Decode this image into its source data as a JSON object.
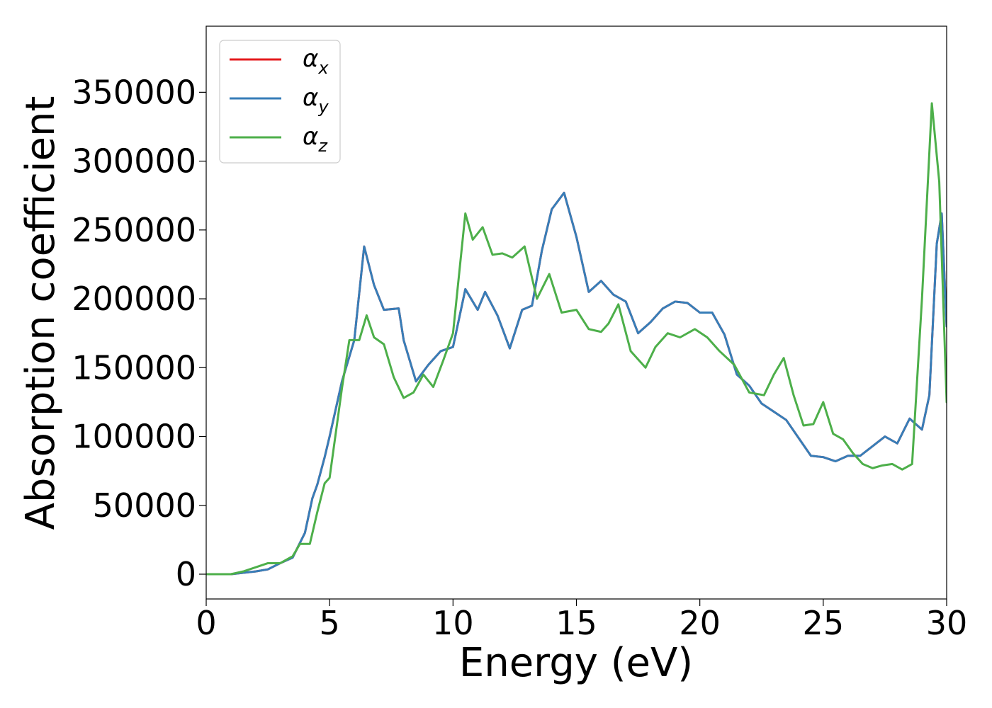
{
  "chart_data": {
    "type": "line",
    "title": "",
    "xlabel": "Energy (eV)",
    "ylabel": "Absorption coefficient",
    "xlim": [
      0,
      30
    ],
    "ylim": [
      -18000,
      398000
    ],
    "grid": false,
    "legend_position": "top-left",
    "x_ticks": [
      0,
      5,
      10,
      15,
      20,
      25,
      30
    ],
    "x_tick_labels": [
      "0",
      "5",
      "10",
      "15",
      "20",
      "25",
      "30"
    ],
    "y_ticks": [
      0,
      50000,
      100000,
      150000,
      200000,
      250000,
      300000,
      350000
    ],
    "y_tick_labels": [
      "0",
      "50000",
      "100000",
      "150000",
      "200000",
      "250000",
      "300000",
      "350000"
    ],
    "series": [
      {
        "name": "α_x",
        "legend_main": "α",
        "legend_sub": "x",
        "color": "#e41a1c",
        "x": [
          0,
          1,
          1.5,
          2.0,
          2.5,
          3.0,
          3.5,
          4.0,
          4.3,
          4.5,
          4.8,
          5.0,
          5.5,
          6.0,
          6.4,
          6.8,
          7.2,
          7.8,
          8.0,
          8.5,
          9.0,
          9.5,
          10.0,
          10.5,
          11.0,
          11.3,
          11.8,
          12.3,
          12.8,
          13.2,
          13.6,
          14.0,
          14.5,
          15.0,
          15.5,
          16.0,
          16.5,
          17.0,
          17.5,
          18.0,
          18.5,
          19.0,
          19.5,
          20.0,
          20.5,
          21.0,
          21.5,
          22.0,
          22.5,
          23.0,
          23.5,
          24.0,
          24.5,
          25.0,
          25.5,
          26.0,
          26.5,
          27.0,
          27.5,
          28.0,
          28.5,
          29.0,
          29.3,
          29.6,
          29.8,
          30.0
        ],
        "values": [
          0,
          0,
          1000,
          2000,
          3500,
          8000,
          12000,
          30000,
          55000,
          65000,
          85000,
          100000,
          140000,
          170000,
          238000,
          210000,
          192000,
          193000,
          170000,
          140000,
          152000,
          162000,
          165000,
          207000,
          192000,
          205000,
          188000,
          164000,
          192000,
          195000,
          235000,
          265000,
          277000,
          245000,
          205000,
          213000,
          203000,
          198000,
          175000,
          183000,
          193000,
          198000,
          197000,
          190000,
          190000,
          174000,
          145000,
          137000,
          124000,
          118000,
          112000,
          99000,
          86000,
          85000,
          82000,
          86000,
          86000,
          93000,
          100000,
          95000,
          113000,
          105000,
          130000,
          240000,
          262000,
          180000
        ]
      },
      {
        "name": "α_y",
        "legend_main": "α",
        "legend_sub": "y",
        "color": "#377eb8",
        "x": [
          0,
          1,
          1.5,
          2.0,
          2.5,
          3.0,
          3.5,
          4.0,
          4.3,
          4.5,
          4.8,
          5.0,
          5.5,
          6.0,
          6.4,
          6.8,
          7.2,
          7.8,
          8.0,
          8.5,
          9.0,
          9.5,
          10.0,
          10.5,
          11.0,
          11.3,
          11.8,
          12.3,
          12.8,
          13.2,
          13.6,
          14.0,
          14.5,
          15.0,
          15.5,
          16.0,
          16.5,
          17.0,
          17.5,
          18.0,
          18.5,
          19.0,
          19.5,
          20.0,
          20.5,
          21.0,
          21.5,
          22.0,
          22.5,
          23.0,
          23.5,
          24.0,
          24.5,
          25.0,
          25.5,
          26.0,
          26.5,
          27.0,
          27.5,
          28.0,
          28.5,
          29.0,
          29.3,
          29.6,
          29.8,
          30.0
        ],
        "values": [
          0,
          0,
          1000,
          2000,
          3500,
          8000,
          12000,
          30000,
          55000,
          65000,
          85000,
          100000,
          140000,
          170000,
          238000,
          210000,
          192000,
          193000,
          170000,
          140000,
          152000,
          162000,
          165000,
          207000,
          192000,
          205000,
          188000,
          164000,
          192000,
          195000,
          235000,
          265000,
          277000,
          245000,
          205000,
          213000,
          203000,
          198000,
          175000,
          183000,
          193000,
          198000,
          197000,
          190000,
          190000,
          174000,
          145000,
          137000,
          124000,
          118000,
          112000,
          99000,
          86000,
          85000,
          82000,
          86000,
          86000,
          93000,
          100000,
          95000,
          113000,
          105000,
          130000,
          240000,
          262000,
          180000
        ]
      },
      {
        "name": "α_z",
        "legend_main": "α",
        "legend_sub": "z",
        "color": "#4daf4a",
        "x": [
          0,
          1,
          1.5,
          2.0,
          2.5,
          3.0,
          3.5,
          3.8,
          4.2,
          4.5,
          4.8,
          5.0,
          5.5,
          5.8,
          6.2,
          6.5,
          6.8,
          7.2,
          7.6,
          8.0,
          8.4,
          8.8,
          9.2,
          9.6,
          10.0,
          10.5,
          10.8,
          11.2,
          11.6,
          12.0,
          12.4,
          12.9,
          13.4,
          13.9,
          14.4,
          15.0,
          15.5,
          16.0,
          16.3,
          16.7,
          17.2,
          17.8,
          18.2,
          18.7,
          19.2,
          19.8,
          20.3,
          20.8,
          21.4,
          22.0,
          22.6,
          23.0,
          23.4,
          23.8,
          24.2,
          24.6,
          25.0,
          25.4,
          25.8,
          26.2,
          26.6,
          27.0,
          27.4,
          27.8,
          28.2,
          28.6,
          29.0,
          29.4,
          29.7,
          30.0
        ],
        "values": [
          0,
          0,
          2000,
          5000,
          8000,
          8000,
          13000,
          22000,
          22000,
          45000,
          66000,
          70000,
          135000,
          170000,
          170000,
          188000,
          172000,
          167000,
          143000,
          128000,
          132000,
          145000,
          136000,
          155000,
          175000,
          262000,
          243000,
          252000,
          232000,
          233000,
          230000,
          238000,
          200000,
          218000,
          190000,
          192000,
          178000,
          176000,
          182000,
          196000,
          162000,
          150000,
          165000,
          175000,
          172000,
          178000,
          172000,
          162000,
          152000,
          132000,
          130000,
          145000,
          157000,
          130000,
          108000,
          109000,
          125000,
          102000,
          98000,
          88000,
          80000,
          77000,
          79000,
          80000,
          76000,
          80000,
          200000,
          342000,
          285000,
          125000
        ]
      }
    ]
  }
}
